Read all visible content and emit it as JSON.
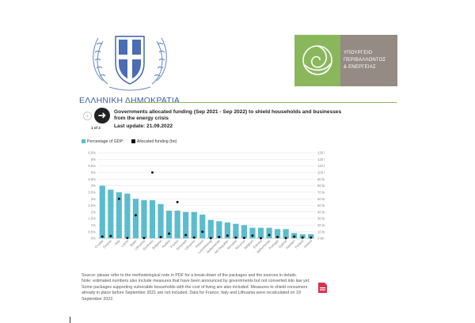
{
  "header": {
    "emblem_icon": "greek-coat-of-arms-icon",
    "republic_name": "ΕΛΛΗΝΙΚΗ ΔΗΜΟΚΡΑΤΙΑ",
    "ministry_lines": [
      "ΥΠΟΥΡΓΕΙΟ",
      "ΠΕΡΙΒΑΛΛΟΝΤΟΣ",
      "& ΕΝΕΡΓΕΙΑΣ"
    ],
    "ministry_logo_icon": "spiral-leaf-icon",
    "colors": {
      "republic_blue": "#3b5fa6",
      "ministry_green": "#8ab75c",
      "ministry_grey": "#958a84"
    }
  },
  "navigation": {
    "prev_icon": "plus-icon",
    "prev_glyph": "+",
    "next_icon": "arrow-right-icon",
    "next_glyph": "➜",
    "counter": "1 of 3"
  },
  "chart_data": {
    "type": "bar",
    "title": "Governments allocated funding (Sep 2021 - Sep 2022) to shield households and businesses from the energy crisis",
    "subtitle": "Last update: 21.09.2022",
    "legend": [
      {
        "label": "Percentage of GDP:",
        "color": "#5bbccd",
        "marker": "square"
      },
      {
        "label": "Allocated funding (bn)",
        "color": "#111111",
        "marker": "square"
      }
    ],
    "legend_position": "top-left",
    "grid": true,
    "categories": [
      "Croatia",
      "Greece",
      "Italy",
      "Latvia",
      "Spain",
      "Lithuania",
      "Germany",
      "Bulgaria",
      "Austria",
      "France",
      "Denmark",
      "Lithuania",
      "Poland",
      "Luxembourg",
      "Netherlands",
      "Czech Republic",
      "Slovakia",
      "Slovenia",
      "Belgium",
      "Estonia",
      "Netherlands",
      "Portugal",
      "Cyprus",
      "Sweden",
      "Finland",
      "Ireland"
    ],
    "series": [
      {
        "name": "Percentage of GDP:",
        "axis": "left",
        "unit": "%",
        "values": [
          4.0,
          3.7,
          3.5,
          3.4,
          3.0,
          2.9,
          2.9,
          2.6,
          2.1,
          2.1,
          2.0,
          2.0,
          1.8,
          1.4,
          1.3,
          1.2,
          1.1,
          1.0,
          0.8,
          0.8,
          0.8,
          0.7,
          0.7,
          0.4,
          0.3,
          0.3
        ]
      },
      {
        "name": "Allocated funding (bn)",
        "axis": "right",
        "unit": "bn",
        "values": [
          2.5,
          3.5,
          60.0,
          0.5,
          35.0,
          0.5,
          100.0,
          1.8,
          7.0,
          55.0,
          5.0,
          1.0,
          10.0,
          0.3,
          2.0,
          4.0,
          1.0,
          0.6,
          4.0,
          0.2,
          5.0,
          2.0,
          0.3,
          2.5,
          1.0,
          1.0
        ]
      }
    ],
    "y_left": {
      "ylim": [
        0,
        6.5
      ],
      "ticks": [
        "0%",
        "0.5%",
        "1%",
        "1.5%",
        "2%",
        "2.5%",
        "3%",
        "3.5%",
        "4%",
        "4.5%",
        "5%",
        "5.5%",
        "6%",
        "6.5%"
      ]
    },
    "y_right": {
      "ylim": [
        0,
        130
      ],
      "ticks": [
        "0 bn",
        "10 bn",
        "20 bn",
        "30 bn",
        "40 bn",
        "50 bn",
        "60 bn",
        "70 bn",
        "80 bn",
        "90 bn",
        "100 bn",
        "110 bn",
        "120 bn",
        "130 bn"
      ]
    }
  },
  "footer": {
    "source": "Source: please refer to the methodological note in PDF for a break-down of the packages and the sources in details.",
    "note": "Note: estimated numbers also include measures that have been announced by governments but not converted into law yet. Some packages supporting vulnerable households with the cost of living are also included. Measures to shield consumers already in place before September 2021 are not included. Data for France, Italy and Lithuania were recalculated on 19 September 2022.",
    "pdf_icon": "pdf-download-icon"
  }
}
